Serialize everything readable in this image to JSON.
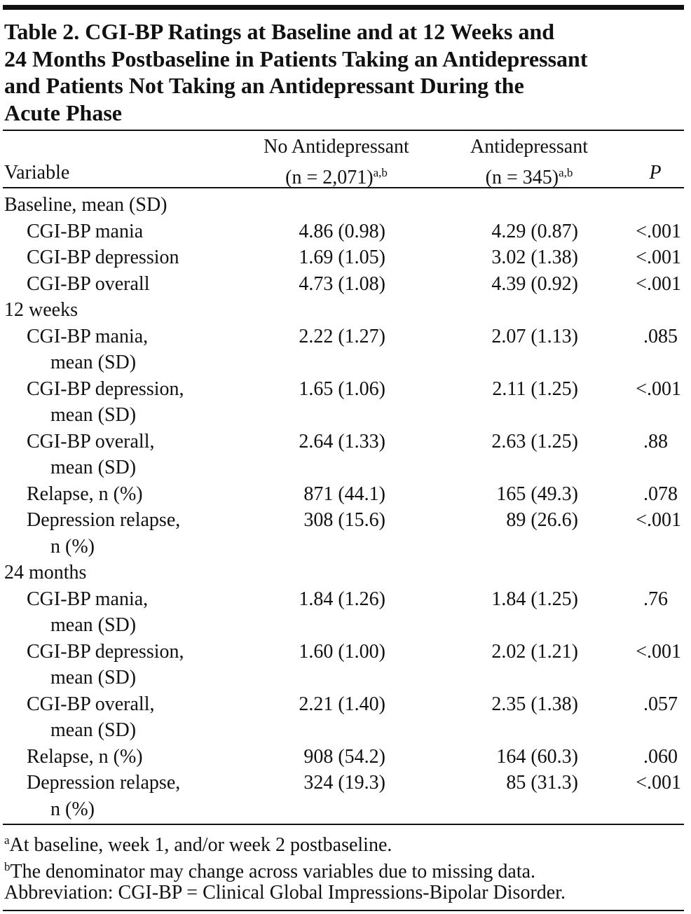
{
  "title": "Table 2. CGI-BP Ratings at Baseline and at 12 Weeks and 24 Months Postbaseline in Patients Taking an Antidepressant and Patients Not Taking an Antidepressant During the Acute Phase",
  "title_lines": [
    "Table 2. CGI-BP Ratings at Baseline and at 12 Weeks and",
    "24 Months Postbaseline in Patients Taking an Antidepressant",
    "and Patients Not Taking an Antidepressant During the",
    "Acute Phase"
  ],
  "header": {
    "variable": "Variable",
    "columns": [
      {
        "name": "No Antidepressant",
        "n": "(n = 2,071)",
        "sup": "a,b"
      },
      {
        "name": "Antidepressant",
        "n": "(n = 345)",
        "sup": "a,b"
      }
    ],
    "p": "P"
  },
  "sections": [
    {
      "title": "Baseline, mean (SD)",
      "rows": [
        {
          "label": [
            "CGI-BP mania"
          ],
          "values": [
            "4.86 (0.98)",
            "4.29 (0.87)",
            "<.001"
          ]
        },
        {
          "label": [
            "CGI-BP depression"
          ],
          "values": [
            "1.69 (1.05)",
            "3.02 (1.38)",
            "<.001"
          ]
        },
        {
          "label": [
            "CGI-BP overall"
          ],
          "values": [
            "4.73 (1.08)",
            "4.39 (0.92)",
            "<.001"
          ]
        }
      ]
    },
    {
      "title": "12 weeks",
      "rows": [
        {
          "label": [
            "CGI-BP mania,",
            "mean (SD)"
          ],
          "values": [
            "2.22 (1.27)",
            "2.07 (1.13)",
            ".085"
          ]
        },
        {
          "label": [
            "CGI-BP depression,",
            "mean (SD)"
          ],
          "values": [
            "1.65 (1.06)",
            "2.11 (1.25)",
            "<.001"
          ]
        },
        {
          "label": [
            "CGI-BP overall,",
            "mean (SD)"
          ],
          "values": [
            "2.64 (1.33)",
            "2.63 (1.25)",
            ".88"
          ]
        },
        {
          "label": [
            "Relapse, n (%)"
          ],
          "values": [
            "871 (44.1)",
            "165 (49.3)",
            ".078"
          ]
        },
        {
          "label": [
            "Depression relapse,",
            "n (%)"
          ],
          "values": [
            "308 (15.6)",
            "89 (26.6)",
            "<.001"
          ]
        }
      ]
    },
    {
      "title": "24 months",
      "rows": [
        {
          "label": [
            "CGI-BP mania,",
            "mean (SD)"
          ],
          "values": [
            "1.84 (1.26)",
            "1.84 (1.25)",
            ".76"
          ]
        },
        {
          "label": [
            "CGI-BP depression,",
            "mean (SD)"
          ],
          "values": [
            "1.60 (1.00)",
            "2.02 (1.21)",
            "<.001"
          ]
        },
        {
          "label": [
            "CGI-BP overall,",
            "mean (SD)"
          ],
          "values": [
            "2.21 (1.40)",
            "2.35 (1.38)",
            ".057"
          ]
        },
        {
          "label": [
            "Relapse, n (%)"
          ],
          "values": [
            "908 (54.2)",
            "164 (60.3)",
            ".060"
          ]
        },
        {
          "label": [
            "Depression relapse,",
            "n (%)"
          ],
          "values": [
            "324 (19.3)",
            "85 (31.3)",
            "<.001"
          ]
        }
      ]
    }
  ],
  "footnotes": [
    {
      "mark": "a",
      "text": "At baseline, week 1, and/or week 2 postbaseline."
    },
    {
      "mark": "b",
      "text": "The denominator may change across variables due to missing data."
    }
  ],
  "abbreviation": "Abbreviation: CGI-BP = Clinical Global Impressions-Bipolar Disorder."
}
